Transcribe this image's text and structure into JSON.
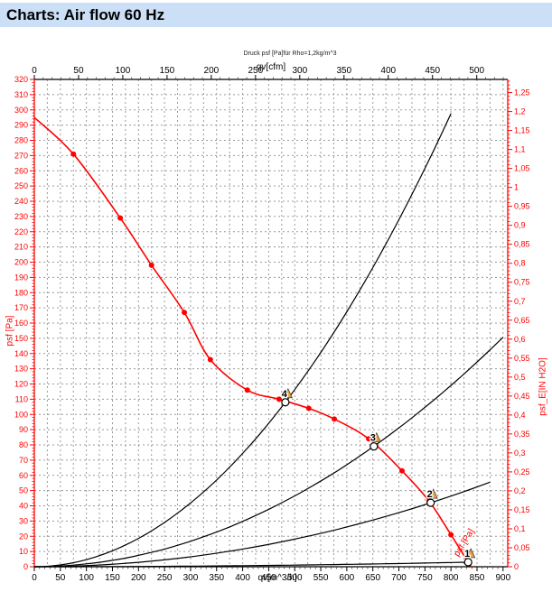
{
  "header": {
    "title": "Charts: Air flow 60 Hz"
  },
  "colors": {
    "accent_red": "#ff0000",
    "curve_black": "#000000",
    "grid": "#9a9a9a",
    "title_bar_bg": "#cbdff6",
    "op_triangle": "#e6a23c"
  },
  "chart_data": {
    "type": "line",
    "title": "Charts: Air flow 60 Hz",
    "note": "Druck psf  [Pa]für Rho=1,2kg/m^3",
    "x_range_m3h": [
      0,
      909
    ],
    "y_range_pa": [
      0,
      320
    ],
    "grid": {
      "x_step_m3h": 25,
      "y_step_pa": 10
    },
    "axes": {
      "left": {
        "label": "psf [Pa]",
        "min": 0,
        "max": 320,
        "step": 10,
        "color": "#ff0000",
        "tick_labels": [
          "320",
          "310",
          "300",
          "290",
          "280",
          "270",
          "260",
          "250",
          "240",
          "230",
          "220",
          "210",
          "200",
          "190",
          "180",
          "170",
          "160",
          "150",
          "140",
          "130",
          "120",
          "110",
          "100",
          "90",
          "80",
          "70",
          "60",
          "50",
          "40",
          "30",
          "20",
          "10",
          "0"
        ]
      },
      "right": {
        "label": "psf_E[IN H2O]",
        "min": 0,
        "max": 1.25,
        "step": 0.05,
        "color": "#ff0000",
        "pa_per_unit": 249.089,
        "tick_labels": [
          "1,25",
          "1,2",
          "1,15",
          "1,1",
          "1,05",
          "1",
          "0,95",
          "0,9",
          "0,85",
          "0,8",
          "0,75",
          "0,7",
          "0,65",
          "0,6",
          "0,55",
          "0,5",
          "0,45",
          "0,4",
          "0,35",
          "0,3",
          "0,25",
          "0,2",
          "0,15",
          "0,1",
          "0,05",
          "0"
        ]
      },
      "bottom": {
        "label": "qv[m^3/h]",
        "min": 0,
        "max": 900,
        "step": 50,
        "color": "#000000",
        "tick_labels": [
          "0",
          "50",
          "100",
          "150",
          "200",
          "250",
          "300",
          "350",
          "400",
          "450",
          "500",
          "550",
          "600",
          "650",
          "700",
          "750",
          "800",
          "850",
          "900"
        ]
      },
      "top": {
        "label": "qv[cfm]",
        "min": 0,
        "max": 500,
        "step": 50,
        "color": "#000000",
        "m3h_per_cfm": 1.699,
        "tick_labels": [
          "0",
          "50",
          "100",
          "150",
          "200",
          "250",
          "300",
          "350",
          "400",
          "450",
          "500"
        ]
      }
    },
    "fan_curve": {
      "name": "psf [Pa]",
      "color": "#ff0000",
      "points": [
        [
          0,
          295
        ],
        [
          75,
          271
        ],
        [
          165,
          229
        ],
        [
          225,
          198
        ],
        [
          288,
          167
        ],
        [
          338,
          136
        ],
        [
          409,
          116
        ],
        [
          470,
          110
        ],
        [
          527,
          104
        ],
        [
          576,
          97
        ],
        [
          642,
          84
        ],
        [
          706,
          63
        ],
        [
          758,
          43
        ],
        [
          800,
          21
        ],
        [
          833,
          3
        ],
        [
          840,
          0
        ]
      ],
      "marker_points": [
        [
          75,
          271
        ],
        [
          165,
          229
        ],
        [
          225,
          198
        ],
        [
          288,
          167
        ],
        [
          338,
          136
        ],
        [
          409,
          116
        ],
        [
          470,
          110
        ],
        [
          527,
          104
        ],
        [
          576,
          97
        ],
        [
          642,
          84
        ],
        [
          706,
          63
        ],
        [
          758,
          43
        ],
        [
          800,
          21
        ]
      ]
    },
    "system_curves": [
      {
        "name": "system-curve-4",
        "k": 0.000465,
        "q_end": 800
      },
      {
        "name": "system-curve-3",
        "k": 0.000186,
        "q_end": 900
      },
      {
        "name": "system-curve-2",
        "k": 7.25e-05,
        "q_end": 875
      },
      {
        "name": "system-curve-1",
        "k": 4.3e-06,
        "q_end": 838
      }
    ],
    "operating_points": [
      {
        "label": "4",
        "q": 482,
        "p": 108
      },
      {
        "label": "3",
        "q": 652,
        "p": 79
      },
      {
        "label": "2",
        "q": 761,
        "p": 42
      },
      {
        "label": "1",
        "q": 833,
        "p": 3
      }
    ],
    "curve_label": {
      "text": "psf [Pa]",
      "color": "#ff0000"
    }
  }
}
